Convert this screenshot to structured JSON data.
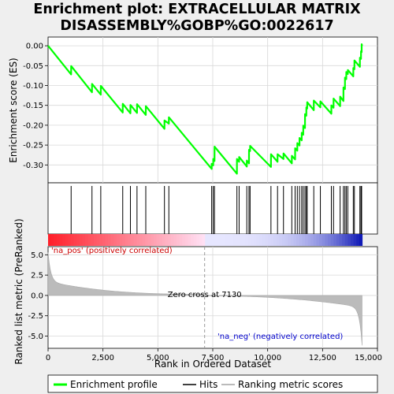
{
  "chart_data": {
    "type": "line",
    "title_line1": "Enrichment plot: EXTRACELLULAR MATRIX",
    "title_line2": "DISASSEMBLY%GOBP%GO:0022617",
    "ylabel_top": "Enrichment score (ES)",
    "ylabel_bottom": "Ranked list metric (PreRanked)",
    "xlabel": "Rank in Ordered Dataset",
    "x_ticks": [
      0,
      2500,
      5000,
      7500,
      10000,
      12500,
      15000
    ],
    "x_tick_labels": [
      "0",
      "2,500",
      "5,000",
      "7,500",
      "10,000",
      "12,500",
      "15,000"
    ],
    "xlim": [
      0,
      15000
    ],
    "es_yticks": [
      0.0,
      -0.05,
      -0.1,
      -0.15,
      -0.2,
      -0.25,
      -0.3
    ],
    "es_ytick_labels": [
      "0.00",
      "-0.05",
      "-0.10",
      "-0.15",
      "-0.20",
      "-0.25",
      "-0.30"
    ],
    "es_ylim": [
      -0.345,
      0.022
    ],
    "metric_yticks": [
      5.0,
      2.5,
      0.0,
      -2.5,
      -5.0
    ],
    "metric_ytick_labels": [
      "5.0",
      "2.5",
      "0.0",
      "-2.5",
      "-5.0"
    ],
    "metric_ylim": [
      -6.5,
      6.0
    ],
    "n_genes": 14300,
    "zero_cross_rank": 7130,
    "zero_cross_label": "Zero cross at 7130",
    "pos_label": "'na_pos' (positively correlated)",
    "neg_label": "'na_neg' (negatively correlated)",
    "legend": [
      {
        "name": "Enrichment profile",
        "color": "#00ff00"
      },
      {
        "name": "Hits",
        "color": "#000000"
      },
      {
        "name": "Ranking metric scores",
        "color": "#bbbbbb"
      }
    ],
    "hits": [
      1050,
      2000,
      2400,
      3400,
      3750,
      4050,
      4450,
      5300,
      5500,
      7450,
      7520,
      7580,
      8600,
      8700,
      9050,
      9150,
      9200,
      10150,
      10450,
      10720,
      11100,
      11250,
      11350,
      11450,
      11550,
      11620,
      11700,
      11760,
      11800,
      12100,
      12400,
      12900,
      13000,
      13300,
      13450,
      13520,
      13580,
      13650,
      13900,
      13950,
      14200,
      14250,
      14280
    ],
    "es_profile": {
      "x": [
        0,
        1050,
        1052,
        2000,
        2002,
        2400,
        2402,
        3400,
        3402,
        3750,
        3752,
        4050,
        4052,
        4450,
        4452,
        5300,
        5302,
        5500,
        5502,
        7450,
        7452,
        7520,
        7522,
        7580,
        7582,
        8600,
        8602,
        8700,
        8702,
        9050,
        9052,
        9150,
        9152,
        9200,
        9202,
        10150,
        10152,
        10450,
        10452,
        10720,
        10722,
        11100,
        11102,
        11250,
        11252,
        11350,
        11352,
        11450,
        11452,
        11550,
        11552,
        11620,
        11622,
        11700,
        11702,
        11760,
        11762,
        11800,
        11802,
        12100,
        12102,
        12400,
        12402,
        12900,
        12902,
        13000,
        13002,
        13300,
        13302,
        13450,
        13452,
        13520,
        13522,
        13580,
        13582,
        13650,
        13652,
        13900,
        13902,
        13950,
        13952,
        14200,
        14202,
        14250,
        14252,
        14280,
        14282,
        14300
      ],
      "y": [
        0.0,
        -0.072,
        -0.051,
        -0.117,
        -0.096,
        -0.123,
        -0.101,
        -0.168,
        -0.146,
        -0.17,
        -0.149,
        -0.169,
        -0.147,
        -0.174,
        -0.152,
        -0.209,
        -0.188,
        -0.196,
        -0.18,
        -0.31,
        -0.297,
        -0.301,
        -0.285,
        -0.29,
        -0.254,
        -0.322,
        -0.285,
        -0.292,
        -0.28,
        -0.304,
        -0.289,
        -0.296,
        -0.262,
        -0.265,
        -0.252,
        -0.305,
        -0.273,
        -0.292,
        -0.273,
        -0.285,
        -0.271,
        -0.296,
        -0.277,
        -0.286,
        -0.258,
        -0.264,
        -0.245,
        -0.251,
        -0.232,
        -0.238,
        -0.219,
        -0.224,
        -0.201,
        -0.207,
        -0.172,
        -0.176,
        -0.155,
        -0.158,
        -0.142,
        -0.162,
        -0.138,
        -0.155,
        -0.14,
        -0.171,
        -0.15,
        -0.156,
        -0.133,
        -0.152,
        -0.128,
        -0.139,
        -0.105,
        -0.109,
        -0.08,
        -0.084,
        -0.066,
        -0.071,
        -0.061,
        -0.077,
        -0.056,
        -0.059,
        -0.037,
        -0.053,
        -0.03,
        -0.033,
        -0.014,
        -0.016,
        0.004,
        0.0
      ]
    }
  }
}
